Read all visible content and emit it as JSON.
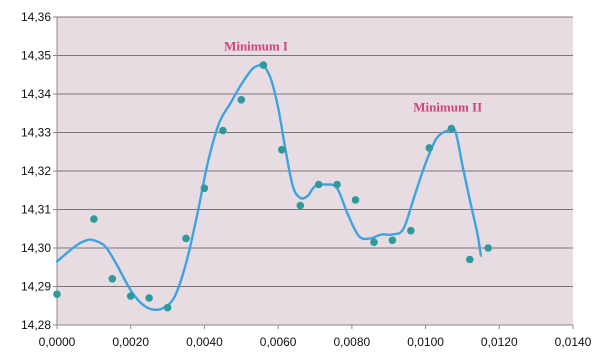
{
  "chart_data": {
    "type": "scatter",
    "title": "",
    "xlabel": "",
    "ylabel": "",
    "xlim": [
      0.0,
      0.014
    ],
    "ylim": [
      14.28,
      14.36
    ],
    "x_ticks": [
      "0,0000",
      "0,0020",
      "0,0040",
      "0,0060",
      "0,0080",
      "0,0100",
      "0,0120",
      "0,0140"
    ],
    "y_ticks": [
      "14,28",
      "14,29",
      "14,30",
      "14,31",
      "14,32",
      "14,33",
      "14,34",
      "14,35",
      "14,36"
    ],
    "grid": "horizontal",
    "plot_background": "#e8dce3",
    "series": [
      {
        "kind": "points",
        "color": "#2e9a9c",
        "x": [
          0.0,
          0.001,
          0.0015,
          0.002,
          0.0025,
          0.003,
          0.0035,
          0.004,
          0.0045,
          0.005,
          0.0056,
          0.0061,
          0.0066,
          0.0071,
          0.0076,
          0.0081,
          0.0086,
          0.0091,
          0.0096,
          0.0101,
          0.0107,
          0.0112,
          0.0117
        ],
        "y": [
          14.288,
          14.3075,
          14.292,
          14.2875,
          14.287,
          14.2845,
          14.3025,
          14.3155,
          14.3305,
          14.3385,
          14.3475,
          14.3255,
          14.311,
          14.3165,
          14.3165,
          14.3125,
          14.3015,
          14.302,
          14.3045,
          14.326,
          14.331,
          14.297,
          14.3
        ]
      },
      {
        "kind": "curve",
        "color": "#3fa3e0",
        "x": [
          0.0,
          0.0005,
          0.0008,
          0.001,
          0.0013,
          0.0016,
          0.002,
          0.0023,
          0.0026,
          0.0029,
          0.0032,
          0.0035,
          0.0038,
          0.0041,
          0.0044,
          0.0047,
          0.005,
          0.0053,
          0.0055,
          0.0056,
          0.0058,
          0.006,
          0.0062,
          0.0064,
          0.0066,
          0.0068,
          0.007,
          0.0073,
          0.0076,
          0.0079,
          0.0082,
          0.0085,
          0.0088,
          0.0091,
          0.0094,
          0.0097,
          0.01,
          0.0103,
          0.0106,
          0.0108,
          0.011,
          0.0112,
          0.0114,
          0.0115
        ],
        "y": [
          14.2965,
          14.3005,
          14.302,
          14.302,
          14.3005,
          14.296,
          14.289,
          14.2855,
          14.284,
          14.2845,
          14.2875,
          14.296,
          14.3085,
          14.3225,
          14.3325,
          14.3375,
          14.3425,
          14.3465,
          14.3475,
          14.3475,
          14.344,
          14.3365,
          14.3255,
          14.316,
          14.313,
          14.3135,
          14.316,
          14.3165,
          14.3155,
          14.3085,
          14.303,
          14.3025,
          14.3035,
          14.3035,
          14.305,
          14.3135,
          14.322,
          14.3285,
          14.3305,
          14.3305,
          14.3215,
          14.3125,
          14.304,
          14.298
        ]
      }
    ],
    "annotations": [
      {
        "text": "Minimum I",
        "x": 0.0054,
        "y": 14.3513,
        "color": "#d0457a"
      },
      {
        "text": "Minimum II",
        "x": 0.0106,
        "y": 14.3355,
        "color": "#d0457a"
      }
    ]
  }
}
